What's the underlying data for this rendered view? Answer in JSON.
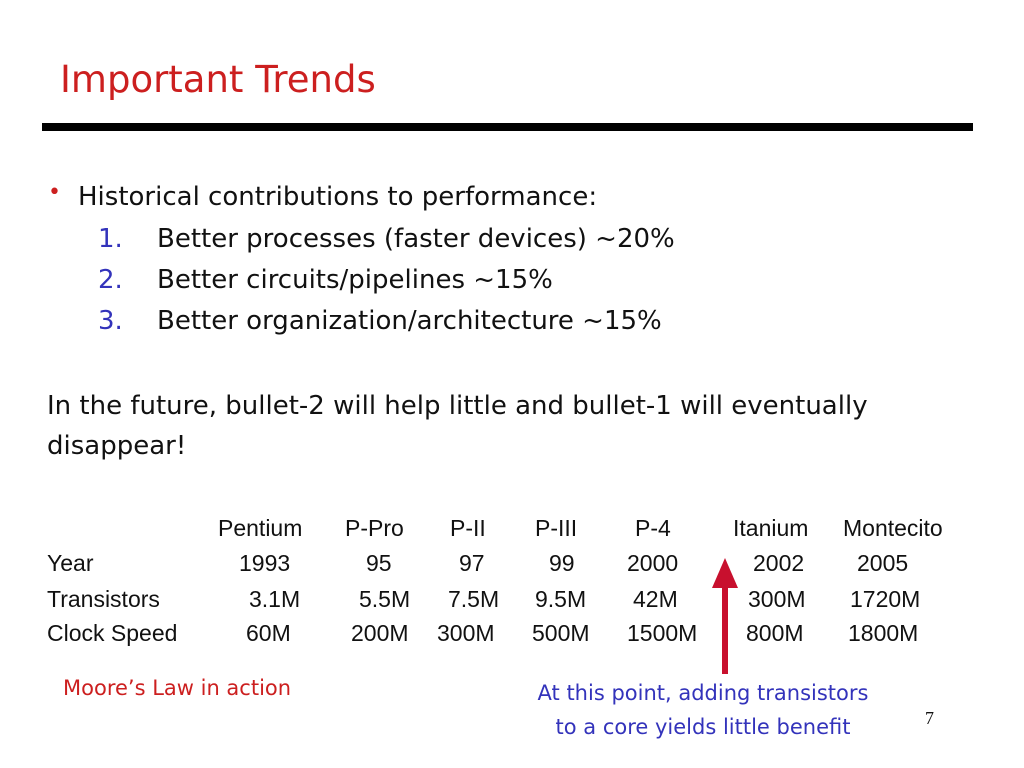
{
  "slide": {
    "title": "Important Trends",
    "bullet_symbol": "•",
    "bullet_text": "Historical contributions to performance:",
    "items": [
      {
        "number": "1.",
        "text": "Better processes (faster devices) ~20%"
      },
      {
        "number": "2.",
        "text": "Better circuits/pipelines ~15%"
      },
      {
        "number": "3.",
        "text": "Better organization/architecture ~15%"
      }
    ],
    "future_text": "In the future, bullet-2 will help little and bullet-1 will eventually disappear!",
    "table": {
      "headers": [
        "Pentium",
        "P-Pro",
        "P-II",
        "P-III",
        "P-4",
        "Itanium",
        "Montecito"
      ],
      "rows": [
        {
          "label": "Year",
          "values": [
            "1993",
            "95",
            "97",
            "99",
            "2000",
            "2002",
            "2005"
          ]
        },
        {
          "label": "Transistors",
          "values": [
            "3.1M",
            "5.5M",
            "7.5M",
            "9.5M",
            "42M",
            "300M",
            "1720M"
          ]
        },
        {
          "label": "Clock Speed",
          "values": [
            "60M",
            "200M",
            "300M",
            "500M",
            "1500M",
            "800M",
            "1800M"
          ]
        }
      ]
    },
    "caption_left": "Moore’s Law in action",
    "caption_right_line1": "At this point, adding transistors",
    "caption_right_line2": "to a core yields little benefit",
    "page_number": "7",
    "colors": {
      "title": "#cc1f1f",
      "numbers": "#3333bb",
      "arrow": "#c8102e"
    }
  }
}
